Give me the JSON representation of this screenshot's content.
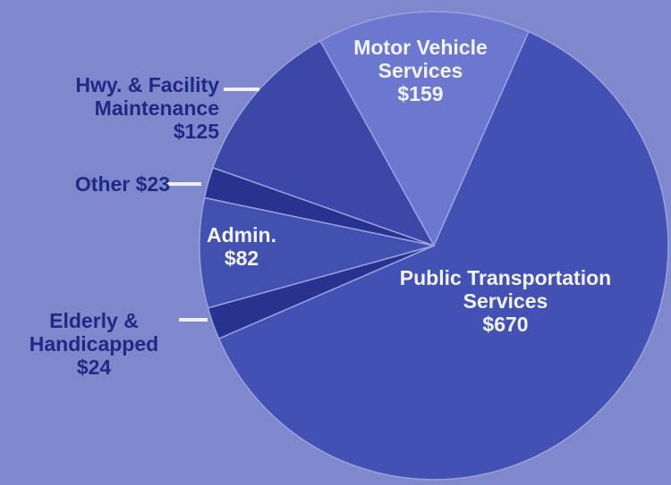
{
  "chart_data": {
    "type": "pie",
    "categories": [
      "Motor Vehicle Services",
      "Public Transportation Services",
      "Elderly & Handicapped",
      "Admin.",
      "Other",
      "Hwy. & Facility Maintenance"
    ],
    "values": [
      159,
      670,
      24,
      82,
      23,
      125
    ],
    "value_labels": [
      "$159",
      "$670",
      "$24",
      "$82",
      "$23",
      "$125"
    ],
    "colors": [
      "#6c78cf",
      "#4251b3",
      "#27338f",
      "#4250b0",
      "#27338f",
      "#3b48a8"
    ]
  }
}
